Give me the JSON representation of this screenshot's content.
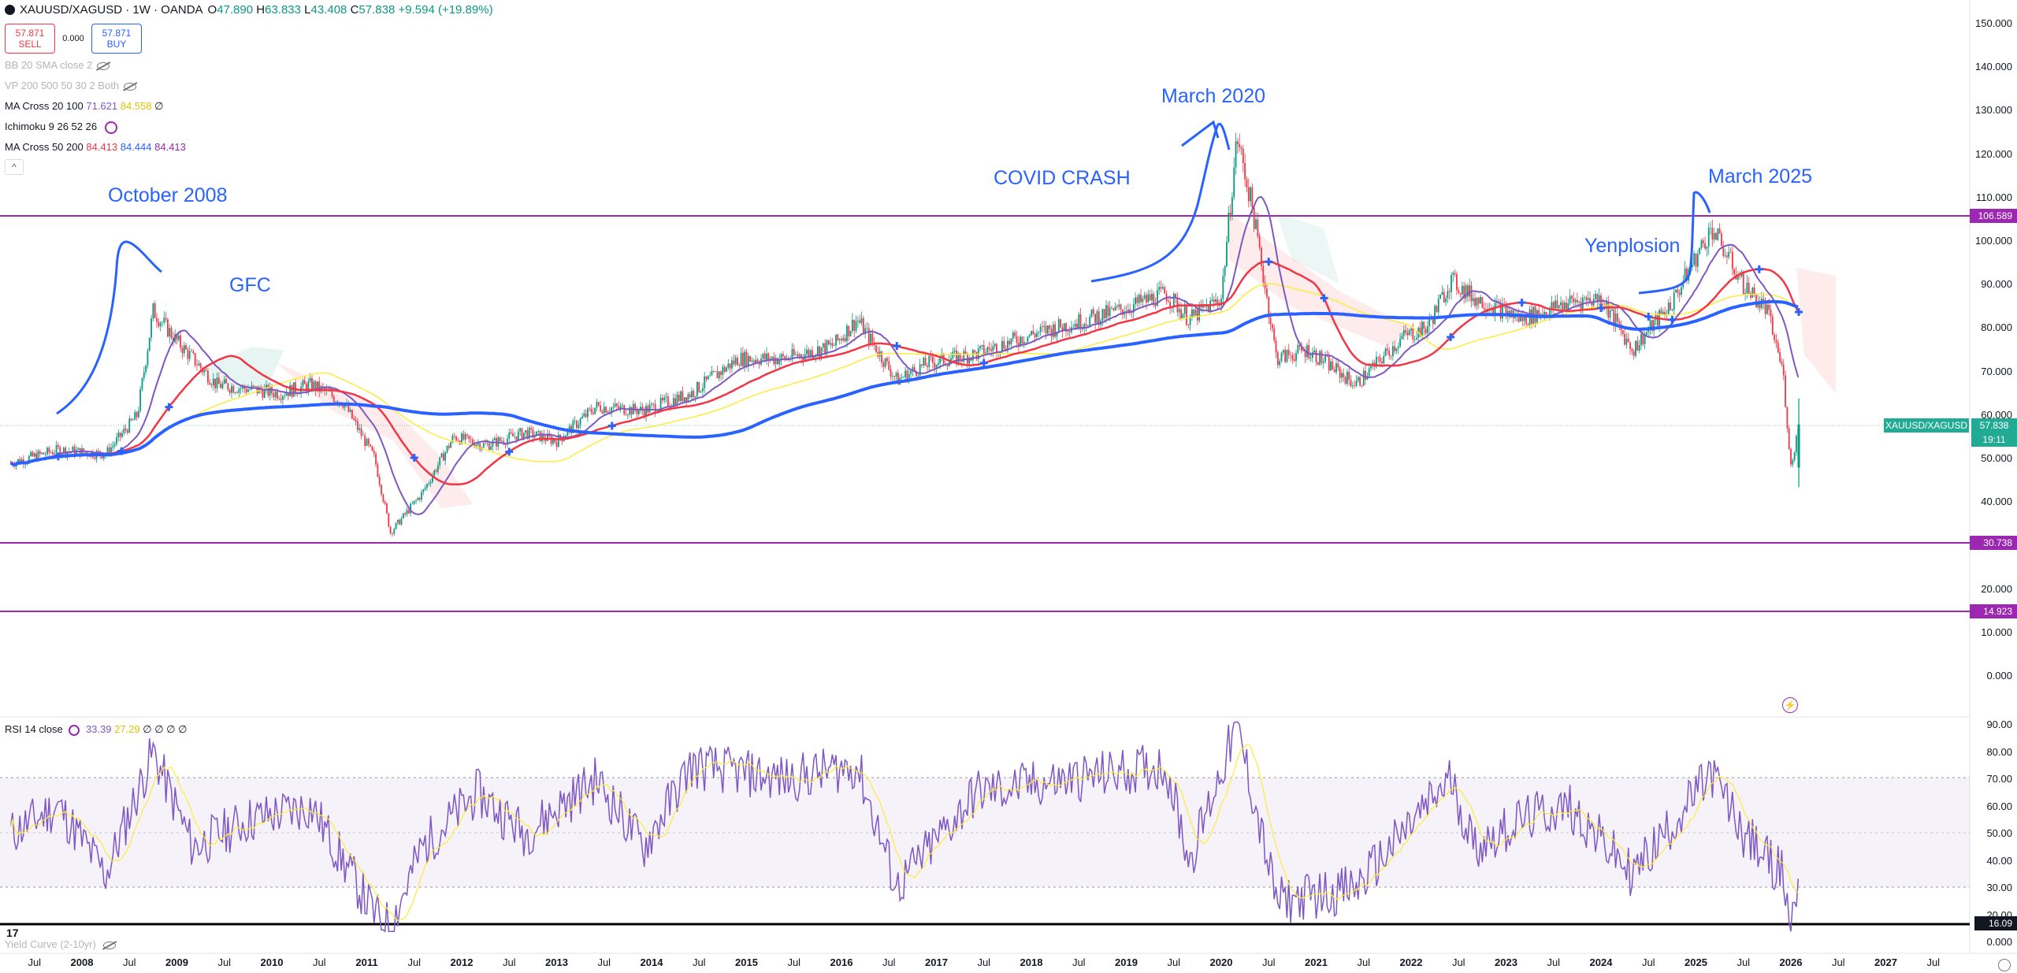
{
  "header": {
    "symbol": "XAUUSD/XAGUSD · 1W · OANDA",
    "o_label": "O",
    "o_value": "47.890",
    "h_label": "H",
    "h_value": "63.833",
    "l_label": "L",
    "l_value": "43.408",
    "c_label": "C",
    "c_value": "57.838",
    "change": "+9.594 (+19.89%)"
  },
  "trade": {
    "sell_price": "57.871",
    "sell_label": "SELL",
    "spread": "0.000",
    "buy_price": "57.871",
    "buy_label": "BUY"
  },
  "indicators": [
    {
      "label": "BB 20 SMA close 2",
      "hidden": true
    },
    {
      "label": "VP 200 500 50 30 2 Both",
      "hidden": true
    },
    {
      "label": "MA Cross 20 100",
      "v1": "71.621",
      "v2": "84.558",
      "v3": "∅"
    },
    {
      "label": "Ichimoku 9 26 52 26"
    },
    {
      "label": "MA Cross 50 200",
      "v1": "84.413",
      "v2": "84.444",
      "v3": "84.413"
    }
  ],
  "annotations": {
    "oct2008": "October 2008",
    "gfc": "GFC",
    "covid": "COVID CRASH",
    "mar2020": "March 2020",
    "mar2025": "March 2025",
    "yenplosion": "Yenplosion"
  },
  "price_axis": [
    "150.000",
    "140.000",
    "130.000",
    "120.000",
    "110.000",
    "100.000",
    "90.000",
    "80.000",
    "70.000",
    "60.000",
    "50.000",
    "40.000",
    "30.000",
    "20.000",
    "10.000",
    "0.000"
  ],
  "price_labels": {
    "level_top": "106.589",
    "current_name": "XAUUSD/XAGUSD",
    "current_price": "57.838",
    "countdown": "19:11",
    "level_mid": "30.738",
    "level_low": "14.923"
  },
  "rsi": {
    "legend_name": "RSI 14 close",
    "v1": "33.39",
    "v2": "27.29",
    "rest": "∅ ∅ ∅ ∅",
    "axis": [
      "90.00",
      "80.00",
      "70.00",
      "60.00",
      "50.00",
      "40.00",
      "30.00",
      "20.00"
    ],
    "level_label": "16.09",
    "bottom_axis": "0.000"
  },
  "yield_curve_legend": "Yield Curve (2-10yr)",
  "time_axis": [
    "Jul",
    "2008",
    "Jul",
    "2009",
    "Jul",
    "2010",
    "Jul",
    "2011",
    "Jul",
    "2012",
    "Jul",
    "2013",
    "Jul",
    "2014",
    "Jul",
    "2015",
    "Jul",
    "2016",
    "Jul",
    "2017",
    "Jul",
    "2018",
    "Jul",
    "2019",
    "Jul",
    "2020",
    "Jul",
    "2021",
    "Jul",
    "2022",
    "Jul",
    "2023",
    "Jul",
    "2024",
    "Jul",
    "2025",
    "Jul",
    "2026",
    "Jul",
    "2027",
    "Jul"
  ],
  "colors": {
    "purple_level": "#9c27b0",
    "blue_ma": "#2962ff",
    "red_ma": "#f23645",
    "yellow_ma": "#ffeb3b",
    "rsi_line": "#7e57c2",
    "up": "#089981",
    "down": "#f23645",
    "current": "#22ab94"
  },
  "chart_data": {
    "type": "candlestick",
    "title": "XAUUSD/XAGUSD · 1W · OANDA",
    "ylim": [
      0,
      150
    ],
    "horizontal_levels": [
      106.589,
      30.738,
      14.923
    ],
    "x_range": [
      "2007-04",
      "2027-09"
    ],
    "series": [
      {
        "name": "XAUUSD/XAGUSD",
        "points": [
          [
            "2007-04",
            49
          ],
          [
            "2007-10",
            52
          ],
          [
            "2008-04",
            51
          ],
          [
            "2008-08",
            60
          ],
          [
            "2008-10",
            84
          ],
          [
            "2009-01",
            77
          ],
          [
            "2009-06",
            67
          ],
          [
            "2009-10",
            66
          ],
          [
            "2010-02",
            65
          ],
          [
            "2010-06",
            67
          ],
          [
            "2010-10",
            63
          ],
          [
            "2011-02",
            50
          ],
          [
            "2011-04",
            33
          ],
          [
            "2011-08",
            42
          ],
          [
            "2011-12",
            55
          ],
          [
            "2012-04",
            53
          ],
          [
            "2012-09",
            56
          ],
          [
            "2013-01",
            54
          ],
          [
            "2013-06",
            62
          ],
          [
            "2013-12",
            61
          ],
          [
            "2014-06",
            65
          ],
          [
            "2014-12",
            73
          ],
          [
            "2015-06",
            73
          ],
          [
            "2015-12",
            76
          ],
          [
            "2016-03",
            82
          ],
          [
            "2016-08",
            68
          ],
          [
            "2016-12",
            72
          ],
          [
            "2017-06",
            74
          ],
          [
            "2017-12",
            78
          ],
          [
            "2018-06",
            81
          ],
          [
            "2018-12",
            84
          ],
          [
            "2019-06",
            88
          ],
          [
            "2019-09",
            82
          ],
          [
            "2020-01",
            87
          ],
          [
            "2020-03",
            124
          ],
          [
            "2020-05",
            107
          ],
          [
            "2020-08",
            73
          ],
          [
            "2020-12",
            75
          ],
          [
            "2021-06",
            67
          ],
          [
            "2021-12",
            78
          ],
          [
            "2022-03",
            80
          ],
          [
            "2022-06",
            91
          ],
          [
            "2022-09",
            87
          ],
          [
            "2023-03",
            82
          ],
          [
            "2023-09",
            86
          ],
          [
            "2024-01",
            87
          ],
          [
            "2024-05",
            75
          ],
          [
            "2024-10",
            86
          ],
          [
            "2025-03",
            103
          ],
          [
            "2025-07",
            90
          ],
          [
            "2025-10",
            84
          ],
          [
            "2025-12",
            70
          ],
          [
            "2026-01",
            48
          ],
          [
            "2026-02",
            57.838
          ]
        ]
      },
      {
        "name": "MA Cross 20 100 (20)",
        "color": "#7e57c2"
      },
      {
        "name": "MA Cross 20 100 (100)",
        "color": "#ffeb3b"
      },
      {
        "name": "MA Cross 50 200 (50)",
        "color": "#f23645"
      },
      {
        "name": "MA Cross 50 200 (200)",
        "color": "#2962ff"
      }
    ],
    "rsi": {
      "name": "RSI 14 close",
      "ylim": [
        10,
        90
      ],
      "levels": [
        70,
        50,
        30
      ],
      "points": [
        [
          "2007-04",
          50
        ],
        [
          "2007-10",
          60
        ],
        [
          "2008-04",
          35
        ],
        [
          "2008-10",
          80
        ],
        [
          "2009-03",
          45
        ],
        [
          "2009-10",
          55
        ],
        [
          "2010-06",
          60
        ],
        [
          "2011-02",
          20
        ],
        [
          "2011-04",
          16
        ],
        [
          "2011-08",
          45
        ],
        [
          "2012-03",
          65
        ],
        [
          "2012-09",
          50
        ],
        [
          "2013-06",
          70
        ],
        [
          "2013-12",
          45
        ],
        [
          "2014-06",
          75
        ],
        [
          "2015-06",
          70
        ],
        [
          "2016-03",
          75
        ],
        [
          "2016-08",
          30
        ],
        [
          "2017-06",
          65
        ],
        [
          "2018-06",
          70
        ],
        [
          "2019-06",
          75
        ],
        [
          "2019-09",
          40
        ],
        [
          "2020-03",
          90
        ],
        [
          "2020-08",
          25
        ],
        [
          "2021-06",
          30
        ],
        [
          "2022-06",
          70
        ],
        [
          "2022-09",
          45
        ],
        [
          "2023-03",
          55
        ],
        [
          "2023-09",
          60
        ],
        [
          "2024-05",
          35
        ],
        [
          "2025-03",
          72
        ],
        [
          "2025-07",
          50
        ],
        [
          "2025-12",
          35
        ],
        [
          "2026-01",
          16
        ],
        [
          "2026-02",
          33.39
        ]
      ]
    }
  }
}
